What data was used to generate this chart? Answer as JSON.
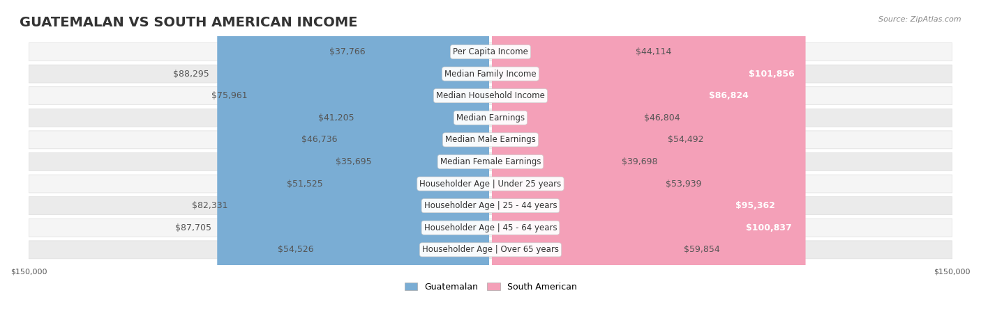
{
  "title": "GUATEMALAN VS SOUTH AMERICAN INCOME",
  "source": "Source: ZipAtlas.com",
  "categories": [
    "Per Capita Income",
    "Median Family Income",
    "Median Household Income",
    "Median Earnings",
    "Median Male Earnings",
    "Median Female Earnings",
    "Householder Age | Under 25 years",
    "Householder Age | 25 - 44 years",
    "Householder Age | 45 - 64 years",
    "Householder Age | Over 65 years"
  ],
  "guatemalan_values": [
    37766,
    88295,
    75961,
    41205,
    46736,
    35695,
    51525,
    82331,
    87705,
    54526
  ],
  "south_american_values": [
    44114,
    101856,
    86824,
    46804,
    54492,
    39698,
    53939,
    95362,
    100837,
    59854
  ],
  "guatemalan_labels": [
    "$37,766",
    "$88,295",
    "$75,961",
    "$41,205",
    "$46,736",
    "$35,695",
    "$51,525",
    "$82,331",
    "$87,705",
    "$54,526"
  ],
  "south_american_labels": [
    "$44,114",
    "$101,856",
    "$86,824",
    "$46,804",
    "$54,492",
    "$39,698",
    "$53,939",
    "$95,362",
    "$100,837",
    "$59,854"
  ],
  "guatemalan_color": "#7aadd4",
  "guatemalan_color_dark": "#4a86c8",
  "south_american_color": "#f4a0b8",
  "south_american_color_dark": "#f06090",
  "max_value": 150000,
  "background_color": "#ffffff",
  "row_bg_color": "#f0f0f0",
  "row_alt_bg_color": "#ffffff",
  "title_fontsize": 14,
  "label_fontsize": 9,
  "category_fontsize": 8.5,
  "legend_fontsize": 9,
  "axis_label_fontsize": 8
}
